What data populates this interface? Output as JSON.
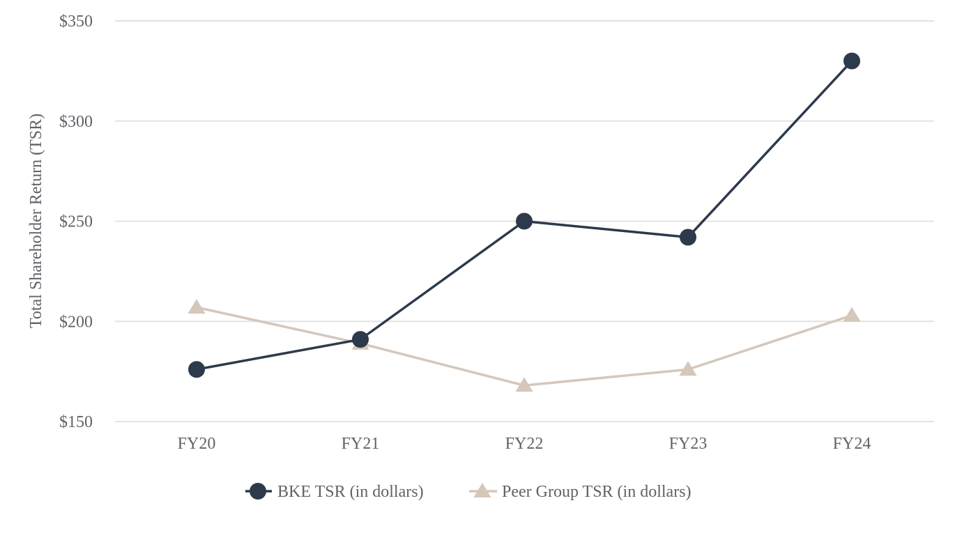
{
  "chart_data": {
    "type": "line",
    "title": "",
    "xlabel": "",
    "ylabel": "Total Shareholder Return (TSR)",
    "categories": [
      "FY20",
      "FY21",
      "FY22",
      "FY23",
      "FY24"
    ],
    "ylim": [
      150,
      350
    ],
    "yticks": [
      150,
      200,
      250,
      300,
      350
    ],
    "ytick_labels": [
      "$150",
      "$200",
      "$250",
      "$300",
      "$350"
    ],
    "grid": true,
    "legend_position": "bottom",
    "series": [
      {
        "name": "BKE TSR (in dollars)",
        "values": [
          176,
          191,
          250,
          242,
          330
        ],
        "color": "#2c3a4b",
        "marker": "circle"
      },
      {
        "name": "Peer Group TSR (in dollars)",
        "values": [
          207,
          189,
          168,
          176,
          203
        ],
        "color": "#d5c7ba",
        "marker": "triangle"
      }
    ]
  }
}
